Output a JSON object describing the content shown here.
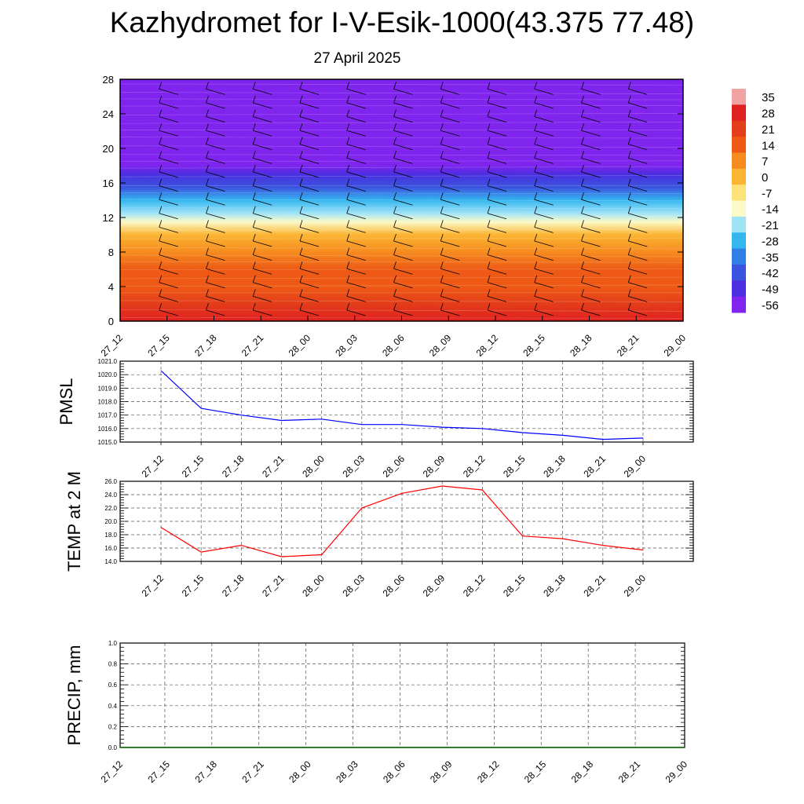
{
  "header": {
    "title": "Kazhydromet for I-V-Esik-1000(43.375 77.48)",
    "date": "27 April 2025"
  },
  "chart_data": [
    {
      "type": "heatmap",
      "name": "vertical-profile",
      "x_ticks": [
        "27_12",
        "27_15",
        "27_18",
        "27_21",
        "28_00",
        "28_03",
        "28_06",
        "28_09",
        "28_12",
        "28_15",
        "28_18",
        "28_21",
        "29_00"
      ],
      "y_ticks": [
        0,
        4,
        8,
        12,
        16,
        20,
        24,
        28
      ],
      "ylim": [
        0,
        28
      ],
      "temperature_profile": [
        {
          "level": 0,
          "value": 28
        },
        {
          "level": 2,
          "value": 24
        },
        {
          "level": 4,
          "value": 20
        },
        {
          "level": 6,
          "value": 14
        },
        {
          "level": 8,
          "value": 8
        },
        {
          "level": 10,
          "value": 2
        },
        {
          "level": 11.5,
          "value": -8
        },
        {
          "level": 12.5,
          "value": -16
        },
        {
          "level": 14,
          "value": -26
        },
        {
          "level": 15.5,
          "value": -36
        },
        {
          "level": 17,
          "value": -46
        },
        {
          "level": 18,
          "value": -56
        },
        {
          "level": 19,
          "value": -56
        },
        {
          "level": 21,
          "value": -59
        },
        {
          "level": 28,
          "value": -56
        }
      ],
      "colorbar_labels": [
        "35",
        "28",
        "21",
        "14",
        "7",
        "0",
        "-7",
        "-14",
        "-21",
        "-28",
        "-35",
        "-42",
        "-49",
        "-56"
      ],
      "colorbar_colors": [
        "#f1a3a3",
        "#e12020",
        "#e33d1a",
        "#ee5a15",
        "#f68b1f",
        "#fbb532",
        "#fde27a",
        "#fbfac8",
        "#9fe3f7",
        "#34b6ef",
        "#2f7fe6",
        "#3b54df",
        "#4b2fe0",
        "#7f25ee"
      ]
    },
    {
      "type": "line",
      "name": "pmsl",
      "ylabel": "PMSL",
      "x": [
        "27_12",
        "27_15",
        "27_18",
        "27_21",
        "28_00",
        "28_03",
        "28_06",
        "28_09",
        "28_12",
        "28_15",
        "28_18",
        "28_21",
        "29_00"
      ],
      "y": [
        1020.3,
        1017.5,
        1017.0,
        1016.6,
        1016.7,
        1016.3,
        1016.3,
        1016.1,
        1016.0,
        1015.7,
        1015.5,
        1015.2,
        1015.3
      ],
      "ylim": [
        1015.0,
        1021.0
      ],
      "y_ticks": [
        "1015.0",
        "1016.0",
        "1017.0",
        "1018.0",
        "1019.0",
        "1020.0",
        "1021.0"
      ],
      "color": "#0000ff",
      "grid": true
    },
    {
      "type": "line",
      "name": "temp",
      "ylabel": "TEMP at 2 M",
      "x": [
        "27_12",
        "27_15",
        "27_18",
        "27_21",
        "28_00",
        "28_03",
        "28_06",
        "28_09",
        "28_12",
        "28_15",
        "28_18",
        "28_21",
        "29_00"
      ],
      "y": [
        19.1,
        15.4,
        16.4,
        14.7,
        15.0,
        22.0,
        24.2,
        25.3,
        24.7,
        17.8,
        17.4,
        16.4,
        15.7
      ],
      "ylim": [
        14.0,
        26.0
      ],
      "y_ticks": [
        "14.0",
        "16.0",
        "18.0",
        "20.0",
        "22.0",
        "24.0",
        "26.0"
      ],
      "color": "#ff0000",
      "grid": true
    },
    {
      "type": "line",
      "name": "precip",
      "ylabel": "PRECIP, mm",
      "x": [
        "27_12",
        "27_15",
        "27_18",
        "27_21",
        "28_00",
        "28_03",
        "28_06",
        "28_09",
        "28_12",
        "28_15",
        "28_18",
        "28_21",
        "29_00"
      ],
      "y": [
        0,
        0,
        0,
        0,
        0,
        0,
        0,
        0,
        0,
        0,
        0,
        0,
        0
      ],
      "ylim": [
        0.0,
        1.0
      ],
      "y_ticks": [
        "0.0",
        "0.2",
        "0.4",
        "0.6",
        "0.8",
        "1.0"
      ],
      "color": "#006400",
      "grid": true
    }
  ]
}
